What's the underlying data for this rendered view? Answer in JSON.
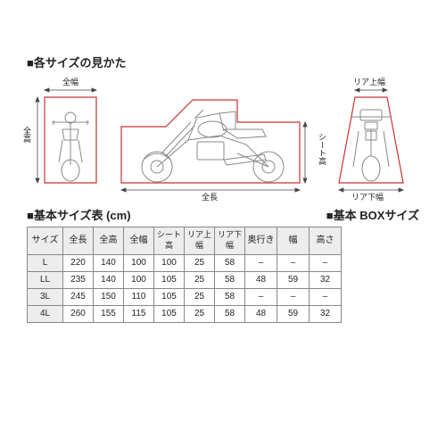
{
  "headings": {
    "diagrams": "■各サイズの見かた",
    "size_table": "■基本サイズ表 (cm)",
    "box_table": "■基本 BOXサイズ"
  },
  "dim_labels": {
    "zentaka": "全高",
    "zenhaba": "全幅",
    "zencho": "全長",
    "seat": "シート高",
    "rear_top": "リア上幅",
    "rear_bottom": "リア下幅"
  },
  "table": {
    "columns": [
      "サイズ",
      "全長",
      "全高",
      "全幅",
      "シート高",
      "リア上幅",
      "リア下幅",
      "奥行き",
      "幅",
      "高さ"
    ],
    "rows": [
      [
        "L",
        "220",
        "140",
        "100",
        "100",
        "25",
        "58",
        "–",
        "–",
        "–"
      ],
      [
        "LL",
        "235",
        "140",
        "100",
        "105",
        "25",
        "58",
        "48",
        "59",
        "32"
      ],
      [
        "3L",
        "245",
        "150",
        "110",
        "105",
        "25",
        "58",
        "–",
        "–",
        "–"
      ],
      [
        "4L",
        "260",
        "155",
        "115",
        "105",
        "25",
        "58",
        "48",
        "59",
        "32"
      ]
    ]
  },
  "colors": {
    "outline": "#cc3333",
    "bike": "#888888",
    "arrow": "#444444",
    "grid": "#888888",
    "th_bg": "#ededed"
  },
  "layout": {
    "front_w": 80,
    "front_h": 110,
    "side_w": 220,
    "side_h": 110,
    "rear_w": 90,
    "rear_h": 110
  }
}
